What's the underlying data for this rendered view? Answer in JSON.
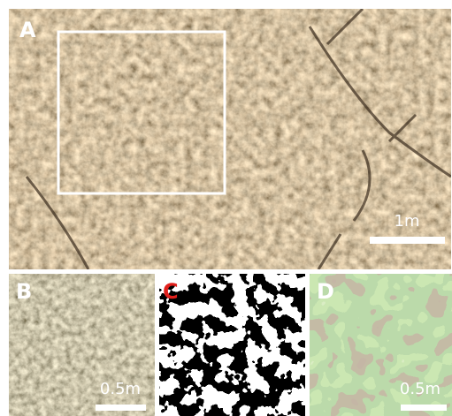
{
  "panels": [
    {
      "label": "A",
      "scale_label": "1m"
    },
    {
      "label": "B",
      "scale_label": "0.5m"
    },
    {
      "label": "C"
    },
    {
      "label": "D",
      "scale_label": "0.5m"
    }
  ]
}
